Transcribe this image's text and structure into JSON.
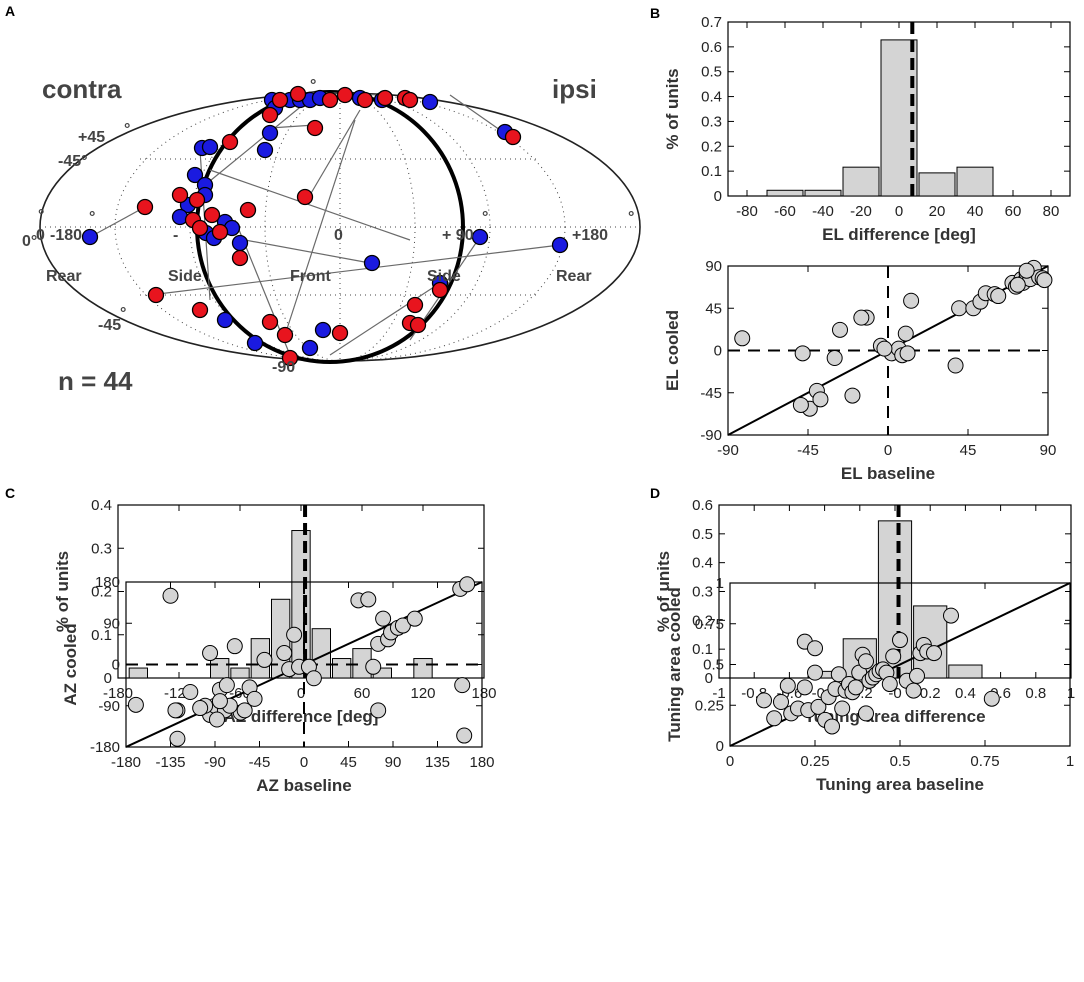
{
  "colors": {
    "red": "#e8141e",
    "blue": "#1a1ae0",
    "bar": "#d4d4d4",
    "dot": "#d4d4d4",
    "line": "#000000"
  },
  "panel_labels": [
    "A",
    "B",
    "C",
    "D"
  ],
  "map": {
    "contra": "contra",
    "ipsi": "ipsi",
    "n_label": "n = 44",
    "labels": {
      "plus45": "+45",
      "minus45": "-45",
      "minus90": "-90",
      "minus180": "-180",
      "zero": "0",
      "plus90": "+ 90",
      "plus180": "+180",
      "left_side": "Side",
      "right_side": "Side",
      "front": "Front",
      "rear_left": "Rear",
      "rear_right": "Rear",
      "deg": "°",
      "minus45_left": "-45°",
      "zero_left": "0°",
      "zero_edge": "0",
      "minus_inner": "-"
    }
  },
  "chart_data": [
    {
      "id": "B-top",
      "type": "bar",
      "xlabel": "EL difference [deg]",
      "ylabel": "% of units",
      "xlim": [
        -90,
        90
      ],
      "ylim": [
        0,
        0.7
      ],
      "xticks": [
        "-80",
        "-60",
        "-40",
        "-20",
        "0",
        "20",
        "40",
        "60",
        "80"
      ],
      "yticks": [
        "0",
        "0.1",
        "0.2",
        "0.3",
        "0.4",
        "0.5",
        "0.6",
        "0.7"
      ],
      "bin_centers": [
        -60,
        -40,
        -20,
        0,
        20,
        40
      ],
      "values": [
        0.023,
        0.023,
        0.116,
        0.628,
        0.093,
        0.116
      ],
      "bin_width": 20,
      "dashed_x": 7
    },
    {
      "id": "B-bottom",
      "type": "scatter",
      "xlabel": "EL baseline",
      "ylabel": "EL cooled",
      "xlim": [
        -90,
        90
      ],
      "ylim": [
        -90,
        90
      ],
      "xticks": [
        "-90",
        "-45",
        "0",
        "45",
        "90"
      ],
      "yticks": [
        "-90",
        "-45",
        "0",
        "45",
        "90"
      ],
      "identity_line": true,
      "x": [
        -82,
        -48,
        -40,
        -30,
        -27,
        -12,
        -15,
        10,
        13,
        2,
        6,
        8,
        11,
        -4,
        -2,
        -44,
        -38,
        -49,
        -20,
        38,
        40,
        48,
        52,
        55,
        60,
        62,
        70,
        72,
        75,
        76,
        78,
        80,
        82,
        85,
        87,
        88,
        73,
        78
      ],
      "y": [
        13,
        -3,
        -43,
        -8,
        22,
        35,
        35,
        18,
        53,
        -3,
        2,
        -5,
        -3,
        5,
        2,
        -62,
        -52,
        -58,
        -48,
        -16,
        45,
        45,
        52,
        61,
        60,
        58,
        72,
        68,
        76,
        72,
        82,
        76,
        88,
        78,
        77,
        75,
        70,
        85
      ]
    },
    {
      "id": "C-top",
      "type": "bar",
      "xlabel": "AZ difference [deg]",
      "ylabel": "% of units",
      "xlim": [
        -180,
        180
      ],
      "ylim": [
        0,
        0.4
      ],
      "xticks": [
        "-180",
        "-120",
        "-60",
        "0",
        "60",
        "120",
        "180"
      ],
      "yticks": [
        "0",
        "0.1",
        "0.2",
        "0.3",
        "0.4"
      ],
      "bin_centers": [
        -160,
        -80,
        -60,
        -40,
        -20,
        0,
        20,
        40,
        60,
        80,
        120
      ],
      "values": [
        0.023,
        0.045,
        0.023,
        0.091,
        0.182,
        0.341,
        0.114,
        0.045,
        0.068,
        0.023,
        0.045
      ],
      "bin_width": 20,
      "dashed_x": 4
    },
    {
      "id": "C-bottom",
      "type": "scatter",
      "xlabel": "AZ baseline",
      "ylabel": "AZ cooled",
      "xlim": [
        -180,
        180
      ],
      "ylim": [
        -180,
        180
      ],
      "xticks": [
        "-180",
        "-135",
        "-90",
        "-45",
        "0",
        "45",
        "90",
        "135",
        "180"
      ],
      "yticks": [
        "-180",
        "-90",
        "0",
        "90",
        "180"
      ],
      "identity_line": true,
      "x": [
        -170,
        -135,
        -128,
        -128,
        -115,
        -130,
        -95,
        -95,
        -90,
        -80,
        -85,
        -78,
        -70,
        -64,
        -75,
        -60,
        -55,
        -50,
        -85,
        -100,
        -105,
        -88,
        -40,
        -20,
        -15,
        -10,
        -5,
        5,
        10,
        55,
        65,
        75,
        80,
        85,
        88,
        95,
        100,
        112,
        158,
        165,
        162,
        160,
        70,
        75
      ],
      "y": [
        -88,
        150,
        -162,
        -100,
        -60,
        -100,
        25,
        -110,
        -90,
        -100,
        -55,
        -45,
        40,
        -105,
        -90,
        -100,
        -50,
        -75,
        -80,
        -90,
        -95,
        -120,
        10,
        25,
        -10,
        65,
        -5,
        -5,
        -30,
        140,
        142,
        45,
        100,
        55,
        70,
        80,
        85,
        100,
        165,
        175,
        -155,
        -45,
        -5,
        -100
      ]
    },
    {
      "id": "D-top",
      "type": "bar",
      "xlabel": "Tuning area difference",
      "ylabel": "% of units",
      "xlim": [
        -1,
        1
      ],
      "ylim": [
        0,
        0.6
      ],
      "xticks": [
        "-1",
        "-0.8",
        "-0.6",
        "-0.4",
        "-0.2",
        "-0",
        "0.2",
        "0.4",
        "0.6",
        "0.8",
        "1"
      ],
      "yticks": [
        "0",
        "0.1",
        "0.2",
        "0.3",
        "0.4",
        "0.5",
        "0.6"
      ],
      "bin_centers": [
        -0.4,
        -0.2,
        0,
        0.2,
        0.4
      ],
      "values": [
        0.023,
        0.136,
        0.545,
        0.25,
        0.045
      ],
      "bin_width": 0.2,
      "dashed_x": 0.02
    },
    {
      "id": "D-bottom",
      "type": "scatter",
      "xlabel": "Tuning area baseline",
      "ylabel": "Tuning area cooled",
      "xlim": [
        0,
        1
      ],
      "ylim": [
        0,
        1
      ],
      "xticks": [
        "0",
        "0.25",
        "0.5",
        "0.75",
        "1"
      ],
      "yticks": [
        "0",
        "0.25",
        "0.5",
        "0.75",
        "1"
      ],
      "identity_line": true,
      "x": [
        0.1,
        0.13,
        0.15,
        0.17,
        0.18,
        0.2,
        0.22,
        0.22,
        0.23,
        0.25,
        0.25,
        0.26,
        0.28,
        0.29,
        0.3,
        0.31,
        0.32,
        0.33,
        0.34,
        0.35,
        0.36,
        0.37,
        0.38,
        0.39,
        0.4,
        0.4,
        0.41,
        0.42,
        0.43,
        0.44,
        0.45,
        0.46,
        0.47,
        0.48,
        0.5,
        0.52,
        0.54,
        0.55,
        0.56,
        0.57,
        0.58,
        0.6,
        0.65,
        0.77
      ],
      "y": [
        0.28,
        0.17,
        0.27,
        0.37,
        0.2,
        0.23,
        0.64,
        0.36,
        0.22,
        0.6,
        0.45,
        0.24,
        0.16,
        0.3,
        0.12,
        0.35,
        0.44,
        0.23,
        0.34,
        0.38,
        0.33,
        0.36,
        0.45,
        0.56,
        0.52,
        0.2,
        0.4,
        0.42,
        0.44,
        0.46,
        0.47,
        0.45,
        0.38,
        0.55,
        0.65,
        0.4,
        0.34,
        0.43,
        0.57,
        0.62,
        0.58,
        0.57,
        0.8,
        0.29
      ]
    }
  ]
}
